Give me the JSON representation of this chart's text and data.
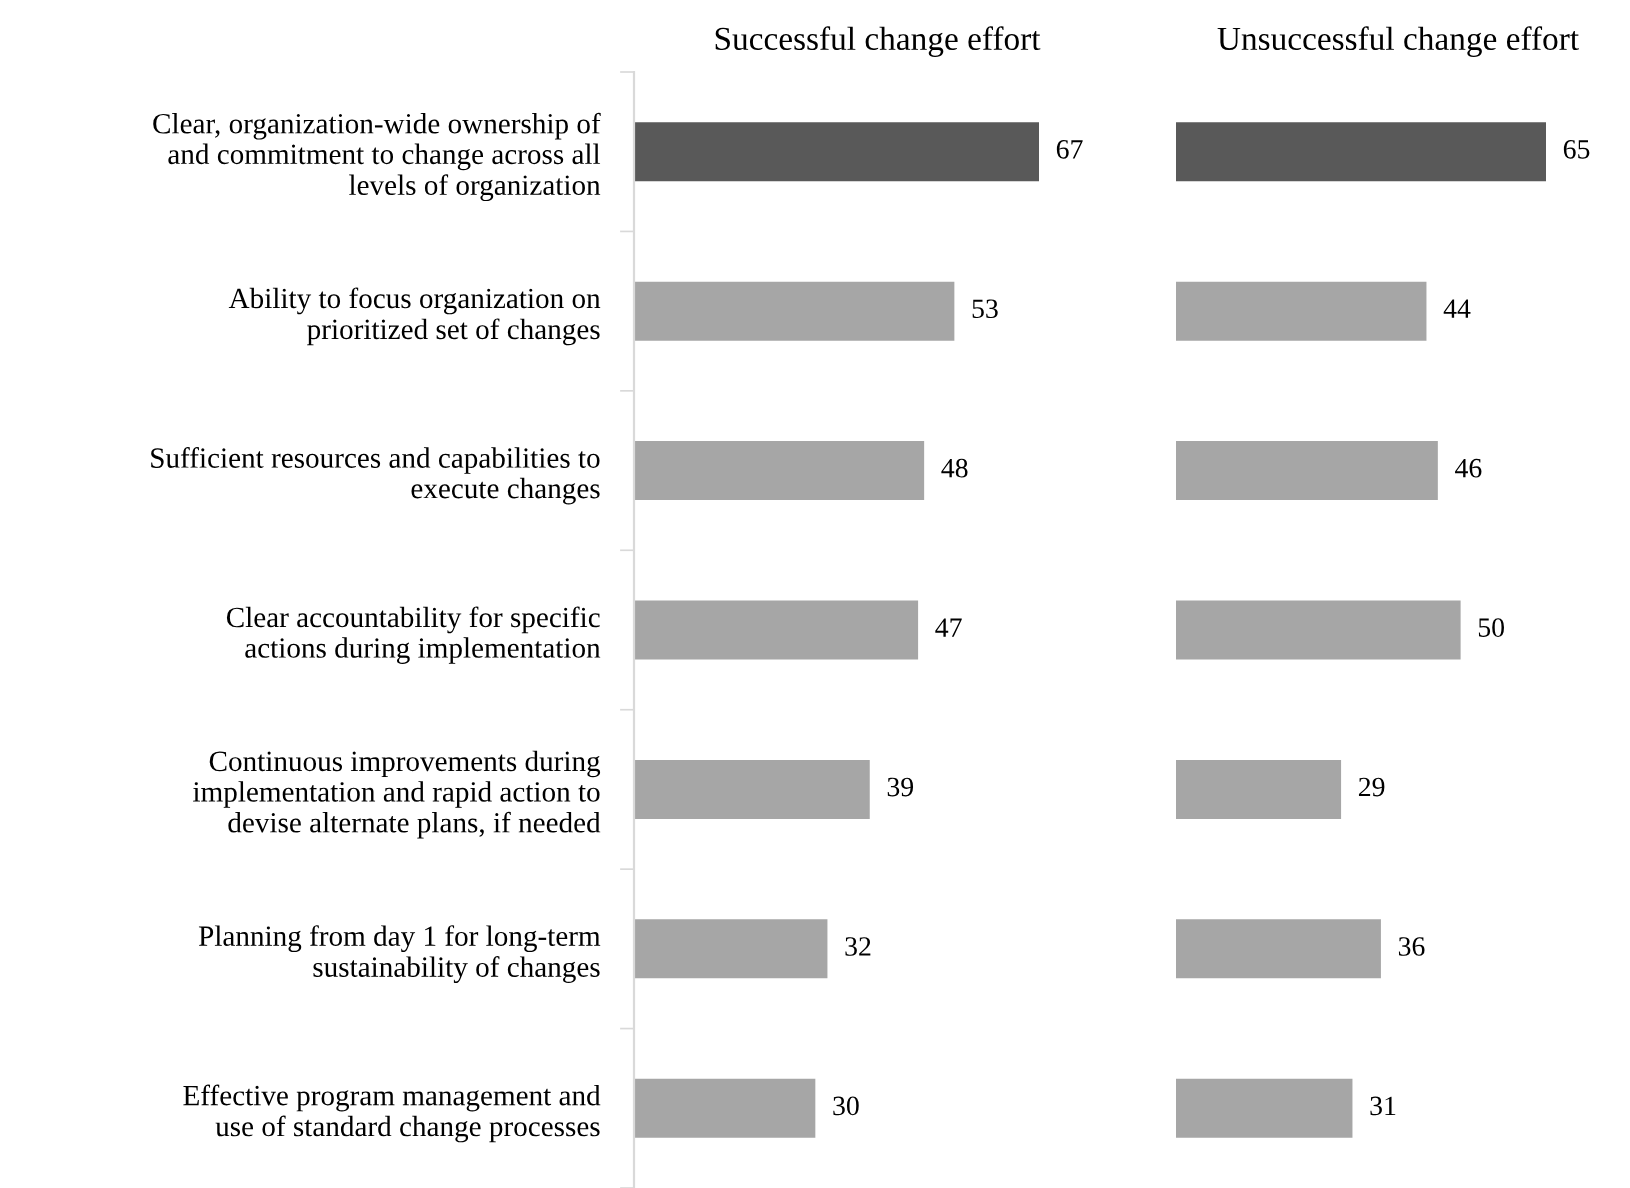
{
  "chart_data": [
    {
      "type": "bar",
      "orientation": "horizontal",
      "title": "Successful change effort",
      "categories": [
        "Clear, organization-wide ownership of\nand commitment to change across all\nlevels of organization",
        "Ability to focus organization on\nprioritized set of changes",
        "Sufficient resources and capabilities to\nexecute changes",
        "Clear accountability for specific\nactions during implementation",
        "Continuous improvements during\nimplementation and rapid action to\ndevise alternate plans, if needed",
        "Planning from day 1 for long-term\nsustainability of changes",
        "Effective program management and\nuse of standard change processes"
      ],
      "values": [
        67,
        53,
        48,
        47,
        39,
        32,
        30
      ],
      "colors": [
        "#595959",
        "#a6a6a6",
        "#a6a6a6",
        "#a6a6a6",
        "#a6a6a6",
        "#a6a6a6",
        "#a6a6a6"
      ],
      "data_labels": true,
      "grid": false,
      "legend": false
    },
    {
      "type": "bar",
      "orientation": "horizontal",
      "title": "Unsuccessful change effort",
      "categories": [
        null,
        null,
        null,
        null,
        null,
        null,
        null
      ],
      "values": [
        65,
        44,
        46,
        50,
        29,
        36,
        31
      ],
      "colors": [
        "#595959",
        "#a6a6a6",
        "#a6a6a6",
        "#a6a6a6",
        "#a6a6a6",
        "#a6a6a6",
        "#a6a6a6"
      ],
      "data_labels": true,
      "grid": false,
      "legend": false,
      "tick_labels": false
    }
  ]
}
